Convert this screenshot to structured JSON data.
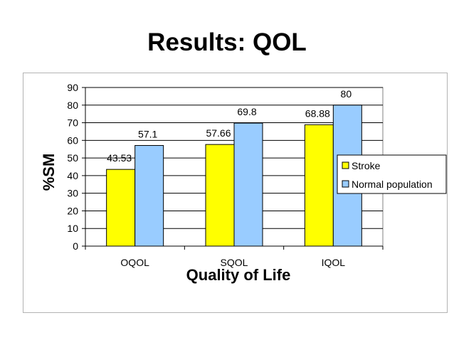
{
  "slide": {
    "title": "Results: QOL"
  },
  "chart_data": {
    "type": "bar",
    "categories": [
      "OQOL",
      "SQOL",
      "IQOL"
    ],
    "series": [
      {
        "name": "Stroke",
        "values": [
          43.53,
          57.66,
          68.88
        ],
        "labels": [
          "43.53",
          "57.66",
          "68.88"
        ],
        "color": "#ffff00"
      },
      {
        "name": "Normal population",
        "values": [
          57.1,
          69.8,
          80
        ],
        "labels": [
          "57.1",
          "69.8",
          "80"
        ],
        "color": "#99ccff"
      }
    ],
    "xlabel": "Quality of Life",
    "ylabel": "%SM",
    "ylim": [
      0,
      90
    ],
    "yticks": [
      "0",
      "10",
      "20",
      "30",
      "40",
      "50",
      "60",
      "70",
      "80",
      "90"
    ],
    "grid": true,
    "legend_position": "right"
  }
}
